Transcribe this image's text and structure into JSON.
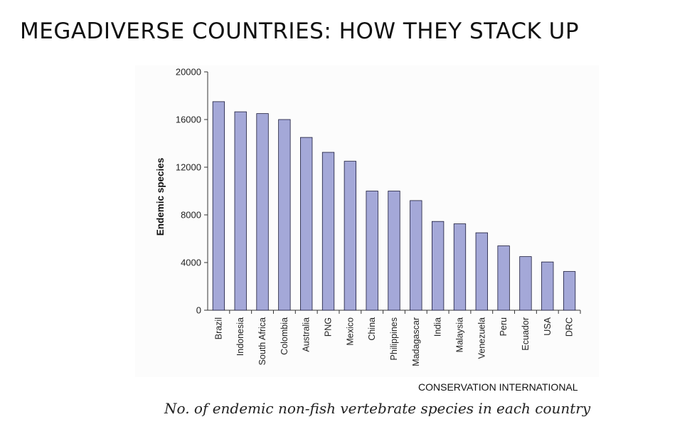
{
  "page": {
    "title": "MEGADIVERSE COUNTRIES: HOW THEY STACK UP",
    "source": "CONSERVATION INTERNATIONAL",
    "caption": "No. of endemic non-fish vertebrate species in each country"
  },
  "chart_data": {
    "type": "bar",
    "categories": [
      "Brazil",
      "Indonesia",
      "South Africa",
      "Colombia",
      "Australia",
      "PNG",
      "Mexico",
      "China",
      "Philippines",
      "Madagascar",
      "India",
      "Malaysia",
      "Venezuela",
      "Peru",
      "Ecuador",
      "USA",
      "DRC"
    ],
    "values": [
      17500,
      16650,
      16500,
      16000,
      14500,
      13250,
      12500,
      10000,
      10000,
      9200,
      7450,
      7250,
      6500,
      5400,
      4500,
      4050,
      3250
    ],
    "title": "",
    "xlabel": "",
    "ylabel": "Endemic species",
    "ylim": [
      0,
      20000
    ],
    "yticks": [
      0,
      4000,
      8000,
      12000,
      16000,
      20000
    ],
    "bar_color": "#a4a8d8",
    "bar_edge_color": "#1a1a3a",
    "grid": false
  }
}
